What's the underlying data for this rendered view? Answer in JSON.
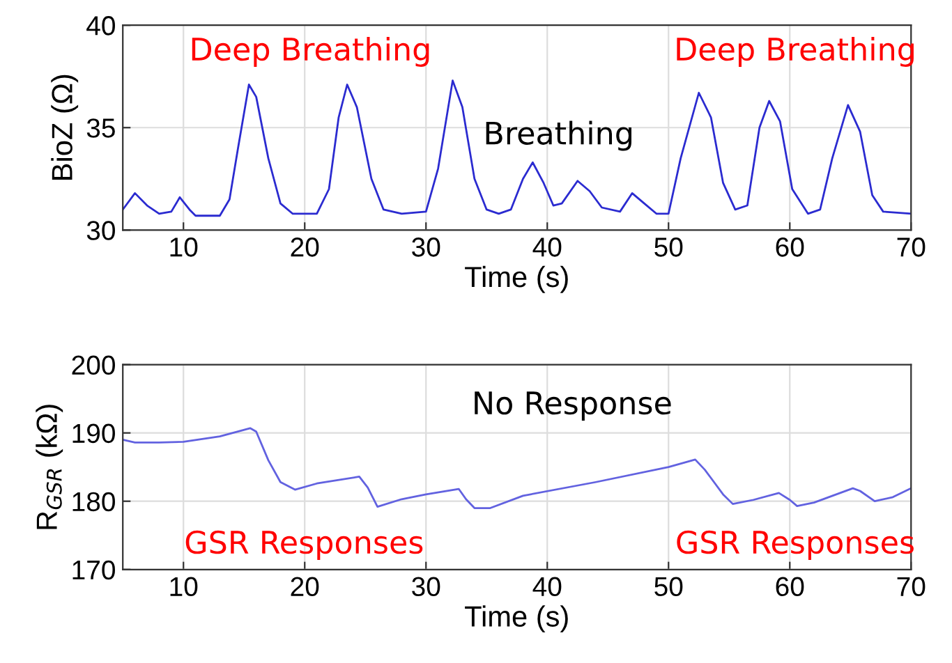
{
  "chart_data": [
    {
      "type": "line",
      "xlabel": "Time (s)",
      "ylabel": "BioZ (Ω)",
      "xlim": [
        5,
        70
      ],
      "xticks": [
        10,
        20,
        30,
        40,
        50,
        60,
        70
      ],
      "ylim": [
        30,
        40
      ],
      "yticks": [
        30,
        35,
        40
      ],
      "grid": true,
      "marker": "none",
      "line_style": "solid",
      "annotations": [
        "Deep Breathing",
        "Deep Breathing",
        "Breathing"
      ],
      "series": [
        {
          "color": "#2b2bd0",
          "x": [
            5,
            6,
            7,
            8,
            9,
            9.7,
            10.5,
            11,
            13,
            13.8,
            14.5,
            15.4,
            16,
            17,
            18,
            19,
            21,
            22,
            22.8,
            23.5,
            24.3,
            25.5,
            26.5,
            28,
            30,
            31,
            32.2,
            33,
            34,
            35,
            36,
            37,
            38,
            38.8,
            39.7,
            40.5,
            41.2,
            42.5,
            43.5,
            44.5,
            46,
            47,
            48,
            49,
            50,
            51,
            52.5,
            53.5,
            54.5,
            55.5,
            56.5,
            57.5,
            58.3,
            59.2,
            60.2,
            61.5,
            62.5,
            63.5,
            64.8,
            65.8,
            66.8,
            67.7,
            70
          ],
          "values": [
            31.0,
            31.8,
            31.2,
            30.8,
            30.9,
            31.6,
            31.0,
            30.7,
            30.7,
            31.5,
            34,
            37.1,
            36.5,
            33.5,
            31.3,
            30.8,
            30.8,
            32.0,
            35.5,
            37.1,
            36.0,
            32.5,
            31.0,
            30.8,
            30.9,
            33,
            37.3,
            36.0,
            32.5,
            31.0,
            30.8,
            31.0,
            32.5,
            33.3,
            32.3,
            31.2,
            31.3,
            32.4,
            31.9,
            31.1,
            30.9,
            31.8,
            31.3,
            30.8,
            30.8,
            33.5,
            36.7,
            35.5,
            32.3,
            31.0,
            31.2,
            35.0,
            36.3,
            35.3,
            32.0,
            30.8,
            31.0,
            33.5,
            36.1,
            34.8,
            31.7,
            30.9,
            30.8
          ]
        }
      ]
    },
    {
      "type": "line",
      "xlabel": "Time (s)",
      "ylabel": "R$_{GSR}$ (kΩ)",
      "xlim": [
        5,
        70
      ],
      "xticks": [
        10,
        20,
        30,
        40,
        50,
        60,
        70
      ],
      "ylim": [
        170,
        200
      ],
      "yticks": [
        170,
        180,
        190,
        200
      ],
      "grid": true,
      "marker": "none",
      "line_style": "solid",
      "annotations": [
        "No Response",
        "GSR Responses",
        "GSR Responses"
      ],
      "series": [
        {
          "color": "#6262e0",
          "x": [
            5,
            6,
            8,
            10,
            13,
            15.5,
            16,
            17,
            18,
            19.2,
            21,
            24.5,
            25.2,
            26,
            28,
            30,
            32.7,
            33.3,
            34,
            35.3,
            38,
            44,
            50,
            52.2,
            53,
            54.5,
            55.3,
            57,
            59.1,
            60,
            60.6,
            62,
            65.2,
            65.8,
            67,
            68.5,
            70
          ],
          "values": [
            189.0,
            188.6,
            188.6,
            188.7,
            189.5,
            190.7,
            190.2,
            186.0,
            182.8,
            181.7,
            182.6,
            183.6,
            182.0,
            179.2,
            180.3,
            181.0,
            181.8,
            180.3,
            179.0,
            179.0,
            180.8,
            182.8,
            185.0,
            186.1,
            184.6,
            181.0,
            179.6,
            180.2,
            181.2,
            180.2,
            179.3,
            179.8,
            181.9,
            181.5,
            180.0,
            180.6,
            181.9
          ]
        }
      ]
    }
  ]
}
